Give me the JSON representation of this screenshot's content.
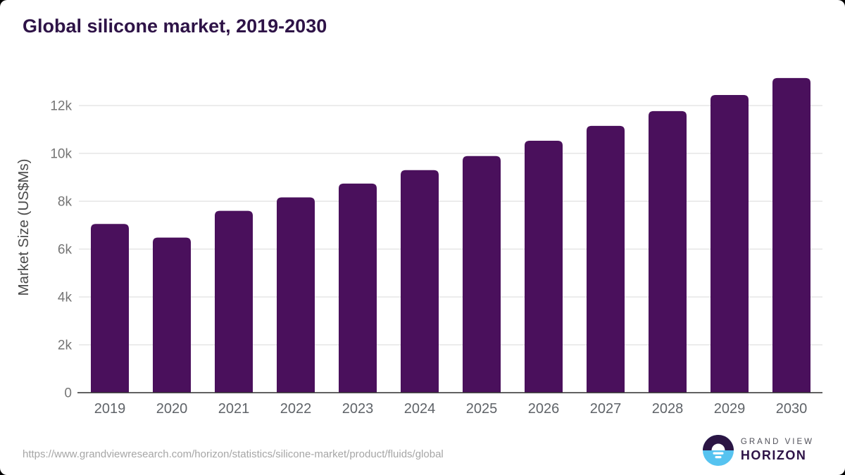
{
  "page_title": "Global silicone market, 2019-2030",
  "chart_data": {
    "type": "bar",
    "title": "Global silicone market, 2019-2030",
    "xlabel": "",
    "ylabel": "Market Size (US$Ms)",
    "categories": [
      "2019",
      "2020",
      "2021",
      "2022",
      "2023",
      "2024",
      "2025",
      "2026",
      "2027",
      "2028",
      "2029",
      "2030"
    ],
    "values": [
      7050,
      6480,
      7600,
      8160,
      8740,
      9300,
      9890,
      10530,
      11150,
      11770,
      12440,
      13150
    ],
    "ylim": [
      0,
      13500
    ],
    "yticks": [
      0,
      2000,
      4000,
      6000,
      8000,
      10000,
      12000
    ],
    "ytick_labels": [
      "0",
      "2k",
      "4k",
      "6k",
      "8k",
      "10k",
      "12k"
    ],
    "grid": true,
    "legend_position": "none",
    "bar_color": "#4a105c"
  },
  "footer": {
    "source_url": "https://www.grandviewresearch.com/horizon/statistics/silicone-market/product/fluids/global",
    "logo": {
      "line1": "GRAND VIEW",
      "line2": "HORIZON"
    }
  },
  "colors": {
    "title_text": "#2e1347",
    "bar_purple": "#4a105c",
    "grid_line": "#e6e6e6",
    "axis_line": "#2e2e2e",
    "tick_text": "#757575",
    "xlabel_text": "#5f6368",
    "ylabel_text": "#4a4a4a",
    "url_text": "#a6a6a6",
    "logo_dark": "#2b1544",
    "logo_blue": "#56c3f0"
  }
}
